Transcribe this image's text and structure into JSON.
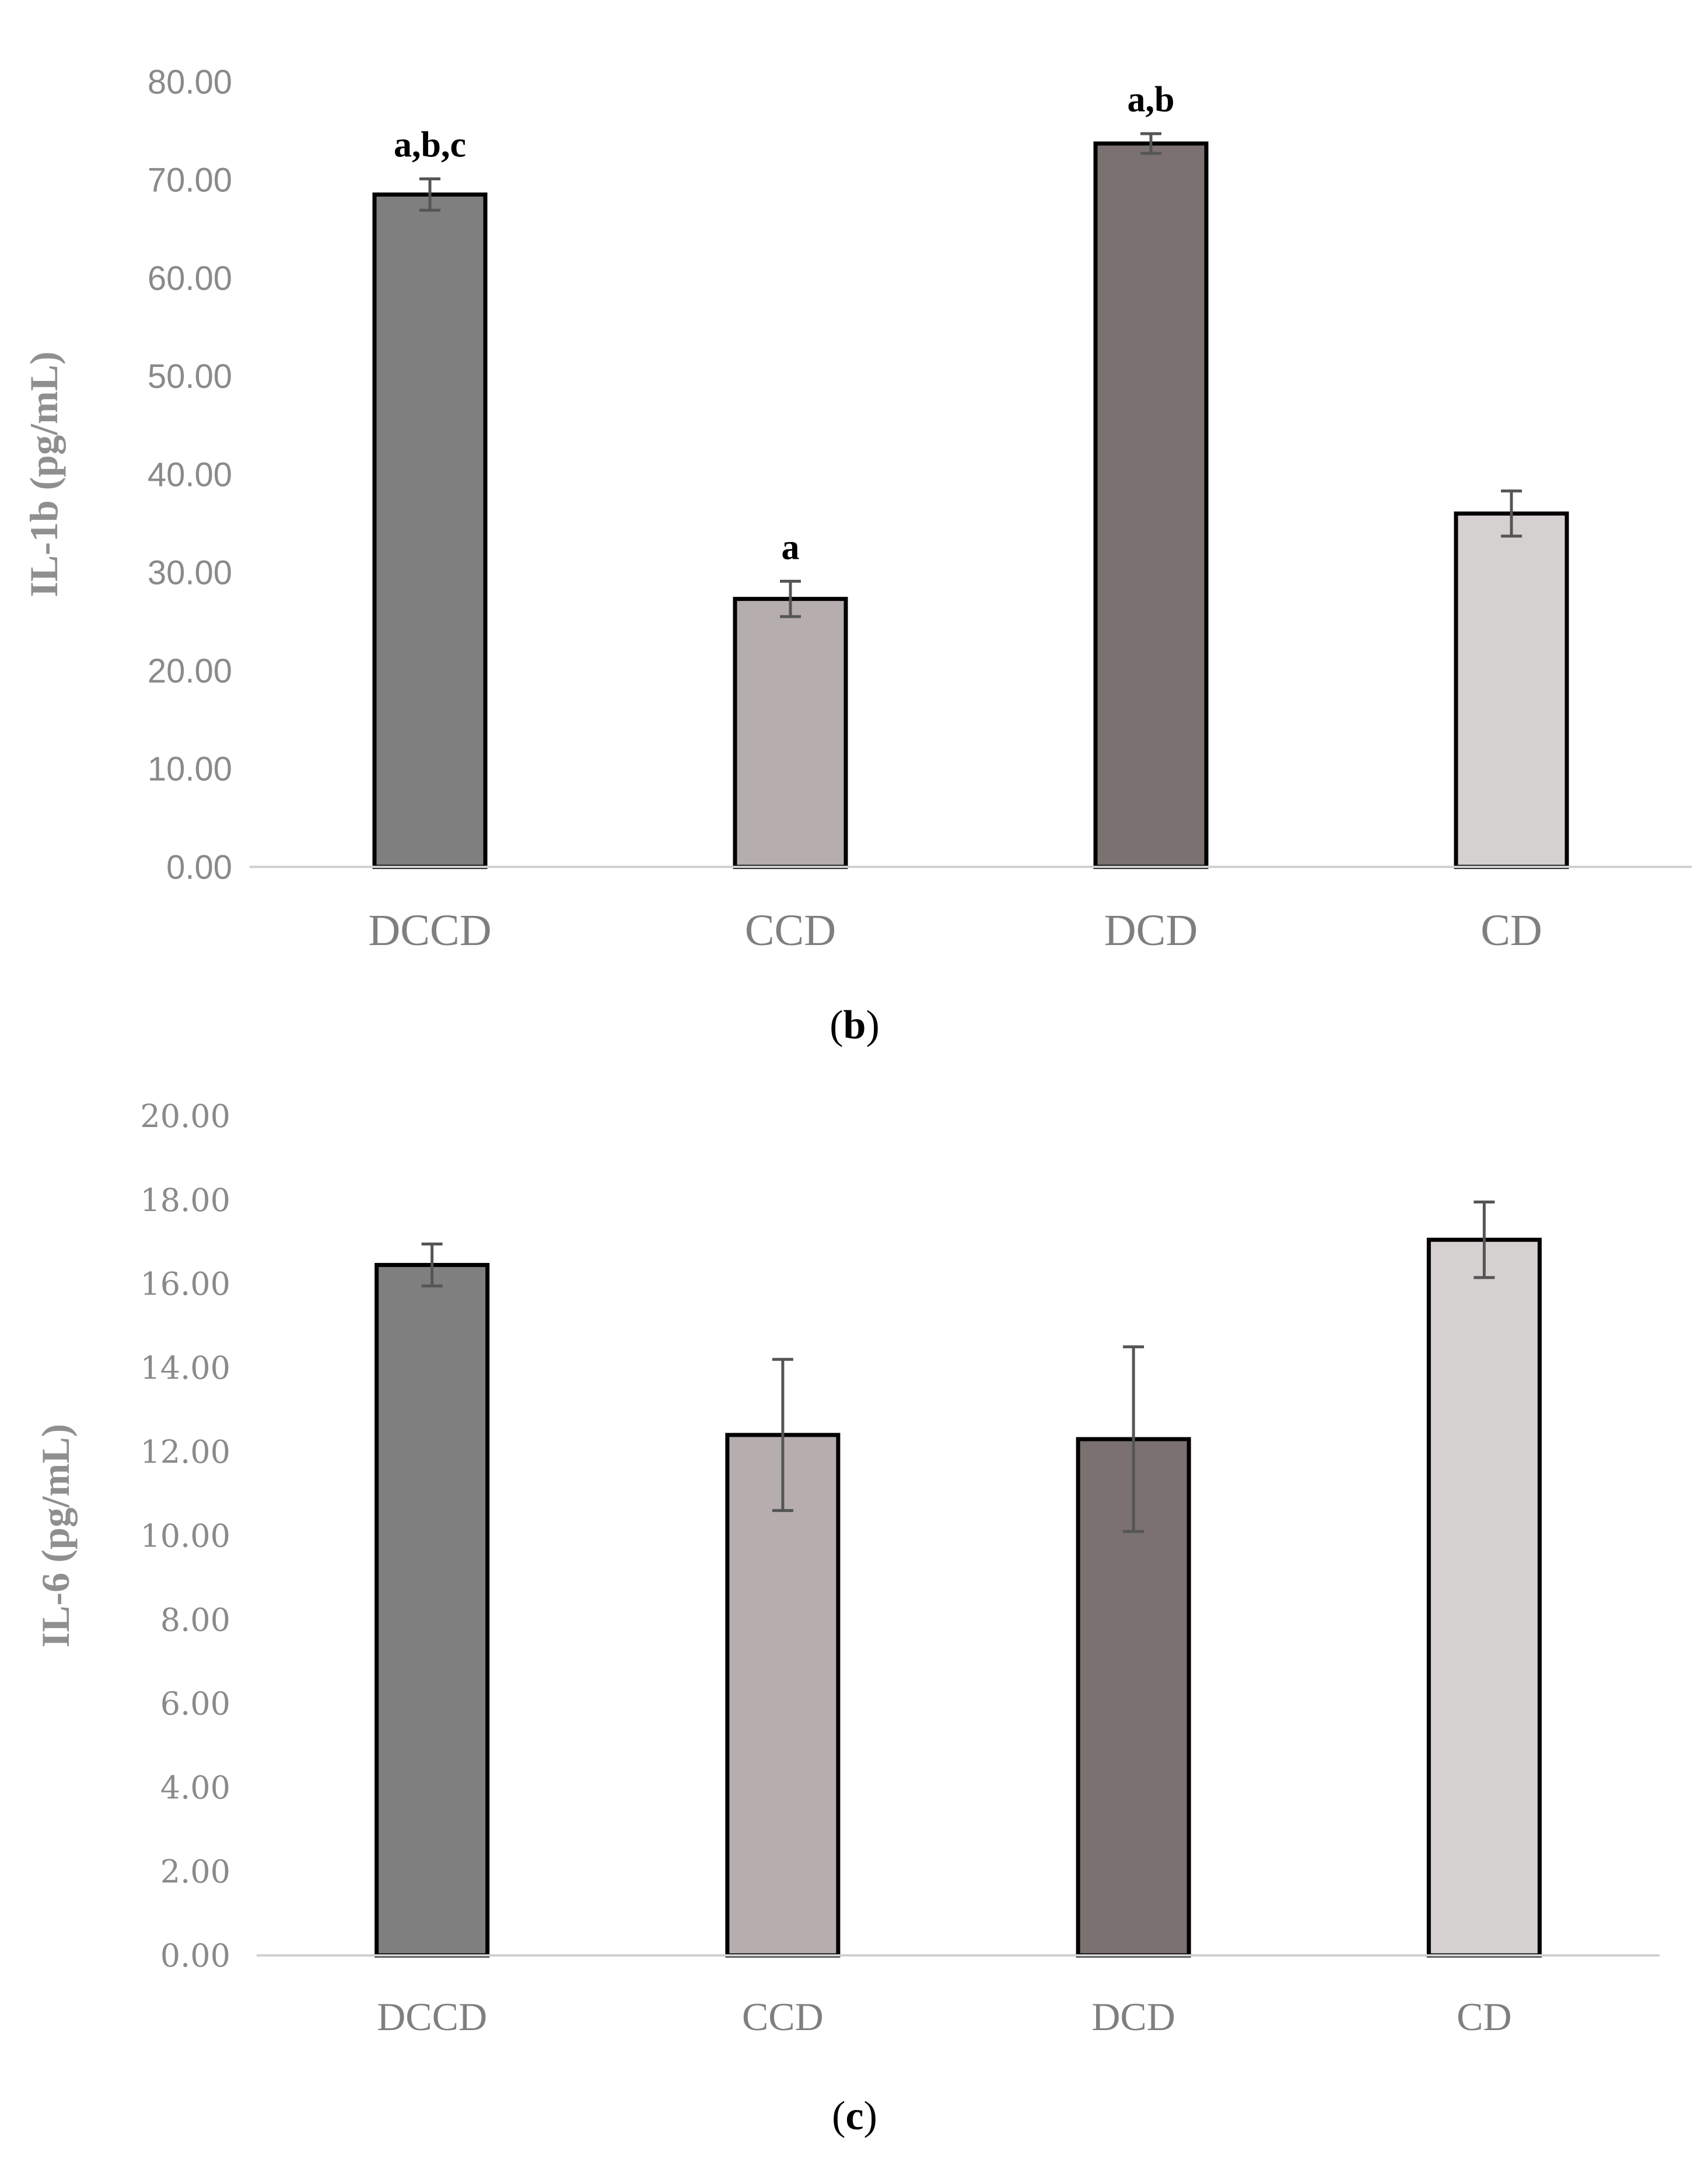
{
  "chart_data": [
    {
      "type": "bar",
      "panel": "b",
      "caption_letter": "b",
      "categories": [
        "DCCD",
        "CCD",
        "DCD",
        "CD"
      ],
      "values": [
        68.5,
        27.3,
        73.7,
        36.0
      ],
      "errors": [
        1.6,
        1.8,
        1.0,
        2.3
      ],
      "annotations": [
        "a,b,c",
        "a",
        "a,b",
        ""
      ],
      "colors": [
        "#7f7f7f",
        "#b5adae",
        "#7b7170",
        "#d6d1d1"
      ],
      "ylabel": "IL-1b (pg/mL)",
      "ylim": [
        0,
        80
      ],
      "yticks": [
        "0.00",
        "10.00",
        "20.00",
        "30.00",
        "40.00",
        "50.00",
        "60.00",
        "70.00",
        "80.00"
      ],
      "grid": false
    },
    {
      "type": "bar",
      "panel": "c",
      "caption_letter": "c",
      "categories": [
        "DCCD",
        "CCD",
        "DCD",
        "CD"
      ],
      "values": [
        16.45,
        12.4,
        12.3,
        17.05
      ],
      "errors": [
        0.5,
        1.8,
        2.2,
        0.9
      ],
      "annotations": [
        "",
        "",
        "",
        ""
      ],
      "colors": [
        "#7f7f7f",
        "#b5adae",
        "#7b7170",
        "#d6d1d1"
      ],
      "ylabel": "IL-6 (pg/mL)",
      "ylim": [
        0,
        20
      ],
      "yticks": [
        "0.00",
        "2.00",
        "4.00",
        "6.00",
        "8.00",
        "10.00",
        "12.00",
        "14.00",
        "16.00",
        "18.00",
        "20.00"
      ],
      "grid": false
    }
  ]
}
